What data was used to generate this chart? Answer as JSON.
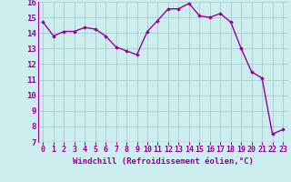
{
  "x": [
    0,
    1,
    2,
    3,
    4,
    5,
    6,
    7,
    8,
    9,
    10,
    11,
    12,
    13,
    14,
    15,
    16,
    17,
    18,
    19,
    20,
    21,
    22,
    23
  ],
  "y": [
    14.7,
    13.8,
    14.1,
    14.1,
    14.35,
    14.25,
    13.8,
    13.1,
    12.85,
    12.6,
    14.1,
    14.8,
    15.55,
    15.55,
    15.9,
    15.1,
    15.0,
    15.25,
    14.7,
    13.0,
    11.5,
    11.1,
    7.5,
    7.8
  ],
  "line_color": "#990099",
  "marker": "D",
  "marker_size": 1.8,
  "bg_color": "#cceeee",
  "grid_color": "#aacccc",
  "xlabel": "Windchill (Refroidissement éolien,°C)",
  "xlabel_color": "#990099",
  "tick_color": "#990099",
  "ylim": [
    7,
    16
  ],
  "xlim": [
    -0.5,
    23.5
  ],
  "yticks": [
    7,
    8,
    9,
    10,
    11,
    12,
    13,
    14,
    15,
    16
  ],
  "xticks": [
    0,
    1,
    2,
    3,
    4,
    5,
    6,
    7,
    8,
    9,
    10,
    11,
    12,
    13,
    14,
    15,
    16,
    17,
    18,
    19,
    20,
    21,
    22,
    23
  ],
  "linewidth": 1.0,
  "xlabel_fontsize": 6.5,
  "tick_fontsize": 6.0,
  "ytick_fontsize": 6.5
}
